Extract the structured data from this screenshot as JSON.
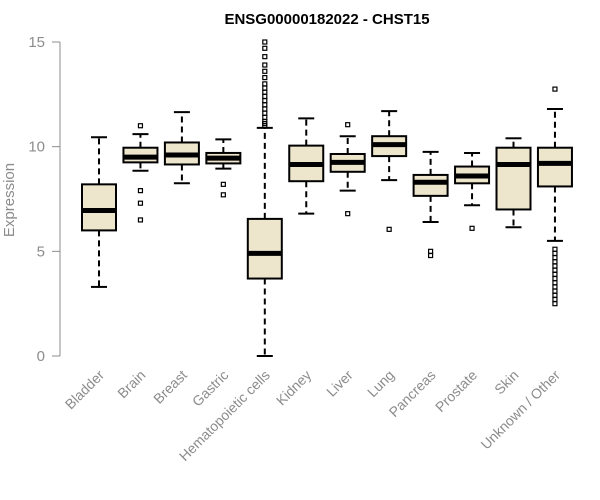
{
  "chart_data": {
    "type": "box",
    "title": "ENSG00000182022 - CHST15",
    "xlabel": "",
    "ylabel": "Expression",
    "ylim": [
      0,
      15
    ],
    "yticks": [
      0,
      5,
      10,
      15
    ],
    "grid": false,
    "box_fill": "#ede6cc",
    "categories": [
      "Bladder",
      "Brain",
      "Breast",
      "Gastric",
      "Hematopoietic cells",
      "Kidney",
      "Liver",
      "Lung",
      "Pancreas",
      "Prostate",
      "Skin",
      "Unknown / Other"
    ],
    "boxes": [
      {
        "whisker_low": 3.3,
        "q1": 6.0,
        "median": 6.95,
        "q3": 8.2,
        "whisker_high": 10.45,
        "outliers": []
      },
      {
        "whisker_low": 8.85,
        "q1": 9.25,
        "median": 9.5,
        "q3": 9.95,
        "whisker_high": 10.6,
        "outliers": [
          11.0,
          7.9,
          7.3,
          6.5
        ]
      },
      {
        "whisker_low": 8.25,
        "q1": 9.15,
        "median": 9.6,
        "q3": 10.2,
        "whisker_high": 11.65,
        "outliers": []
      },
      {
        "whisker_low": 8.95,
        "q1": 9.2,
        "median": 9.45,
        "q3": 9.7,
        "whisker_high": 10.35,
        "outliers": [
          8.2,
          7.7
        ]
      },
      {
        "whisker_low": 0.0,
        "q1": 3.7,
        "median": 4.9,
        "q3": 6.55,
        "whisker_high": 10.9,
        "outliers": [
          11.0,
          11.1,
          11.2,
          11.4,
          11.6,
          11.8,
          12.0,
          12.2,
          12.4,
          12.6,
          12.8,
          13.0,
          13.3,
          13.6,
          13.9,
          14.3,
          14.7,
          15.0
        ]
      },
      {
        "whisker_low": 6.8,
        "q1": 8.35,
        "median": 9.15,
        "q3": 10.05,
        "whisker_high": 11.35,
        "outliers": []
      },
      {
        "whisker_low": 7.9,
        "q1": 8.8,
        "median": 9.25,
        "q3": 9.65,
        "whisker_high": 10.5,
        "outliers": [
          11.05,
          6.8
        ]
      },
      {
        "whisker_low": 8.4,
        "q1": 9.55,
        "median": 10.1,
        "q3": 10.5,
        "whisker_high": 11.7,
        "outliers": [
          6.05
        ]
      },
      {
        "whisker_low": 6.4,
        "q1": 7.65,
        "median": 8.3,
        "q3": 8.65,
        "whisker_high": 9.75,
        "outliers": [
          5.0,
          4.8
        ]
      },
      {
        "whisker_low": 7.2,
        "q1": 8.25,
        "median": 8.6,
        "q3": 9.05,
        "whisker_high": 9.7,
        "outliers": [
          6.1
        ]
      },
      {
        "whisker_low": 6.15,
        "q1": 7.0,
        "median": 9.15,
        "q3": 9.95,
        "whisker_high": 10.4,
        "outliers": []
      },
      {
        "whisker_low": 5.5,
        "q1": 8.1,
        "median": 9.2,
        "q3": 9.95,
        "whisker_high": 11.8,
        "outliers": [
          12.75,
          5.1,
          4.9,
          4.7,
          4.5,
          4.3,
          4.1,
          3.9,
          3.7,
          3.5,
          3.3,
          3.1,
          2.9,
          2.7,
          2.5
        ]
      }
    ]
  }
}
